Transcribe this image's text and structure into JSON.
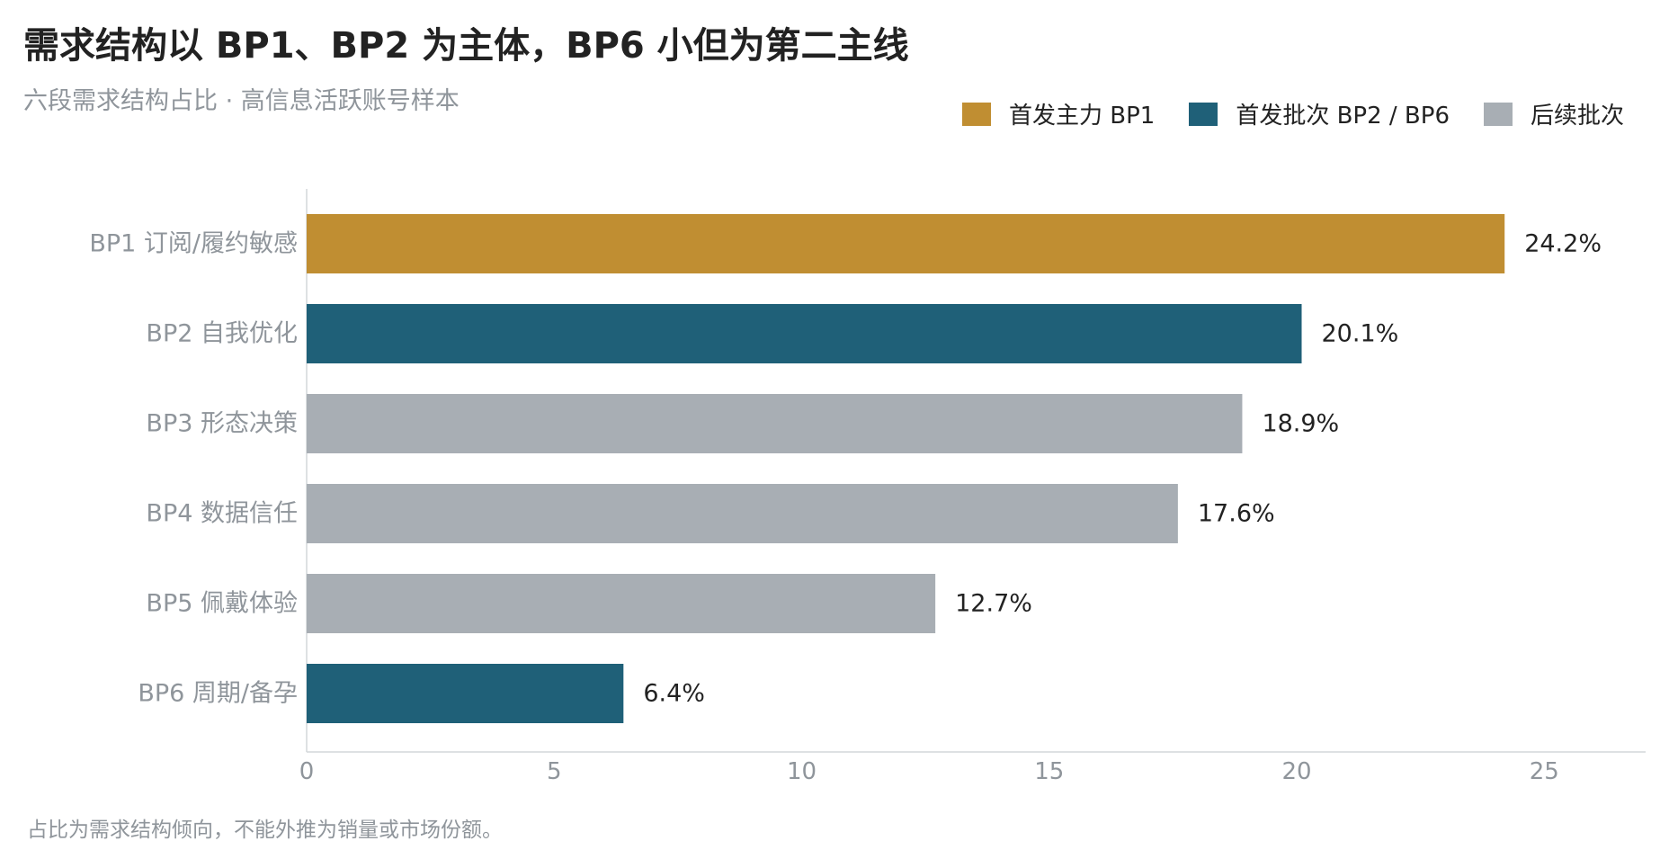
{
  "title": "需求结构以 BP1、BP2 为主体，BP6 小但为第二主线",
  "subtitle": "六段需求结构占比 · 高信息活跃账号样本",
  "footnote": "占比为需求结构倾向，不能外推为销量或市场份额。",
  "legend": [
    {
      "label": "首发主力 BP1",
      "color": "#c08e32"
    },
    {
      "label": "首发批次 BP2 / BP6",
      "color": "#1f6078"
    },
    {
      "label": "后续批次",
      "color": "#a8aeb4"
    }
  ],
  "chart_data": {
    "type": "bar",
    "orientation": "horizontal",
    "categories": [
      "BP1 订阅/履约敏感",
      "BP2 自我优化",
      "BP3 形态决策",
      "BP4 数据信任",
      "BP5 佩戴体验",
      "BP6 周期/备孕"
    ],
    "values": [
      24.2,
      20.1,
      18.9,
      17.6,
      12.7,
      6.4
    ],
    "value_labels": [
      "24.2%",
      "20.1%",
      "18.9%",
      "17.6%",
      "12.7%",
      "6.4%"
    ],
    "colors": [
      "#c08e32",
      "#1f6078",
      "#a8aeb4",
      "#a8aeb4",
      "#a8aeb4",
      "#1f6078"
    ],
    "xlim": [
      0,
      27
    ],
    "xticks": [
      0,
      5,
      10,
      15,
      20,
      25
    ],
    "xlabel": "",
    "ylabel": "",
    "grid": false,
    "legend_position": "top-right"
  }
}
